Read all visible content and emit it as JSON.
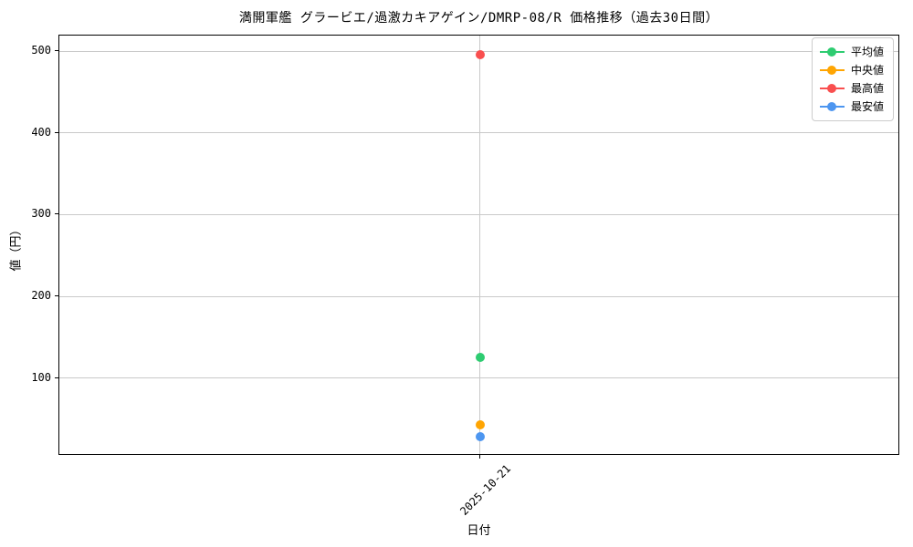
{
  "figure": {
    "background": "#ffffff",
    "grid_color": "#c9c9c9",
    "spine_color": "#000000",
    "text_color": "#000000"
  },
  "chart_data": {
    "type": "line",
    "title": "満開軍艦 グラービエ/過激カキアゲイン/DMRP-08/R 価格推移（過去30日間）",
    "xlabel": "日付",
    "ylabel": "値（円）",
    "categories": [
      "2025-10-21"
    ],
    "series": [
      {
        "name": "平均値",
        "color": "#2ecc71",
        "values": [
          125
        ]
      },
      {
        "name": "中央値",
        "color": "#ffa502",
        "values": [
          43
        ]
      },
      {
        "name": "最高値",
        "color": "#f94f4f",
        "values": [
          496
        ]
      },
      {
        "name": "最安値",
        "color": "#4d96f0",
        "values": [
          28
        ]
      }
    ],
    "ylim": [
      4.6,
      519.4
    ],
    "yticks": [
      100,
      200,
      300,
      400,
      500
    ],
    "grid": true,
    "legend": {
      "position": "upper-right",
      "entries": [
        "平均値",
        "中央値",
        "最高値",
        "最安値"
      ]
    }
  }
}
